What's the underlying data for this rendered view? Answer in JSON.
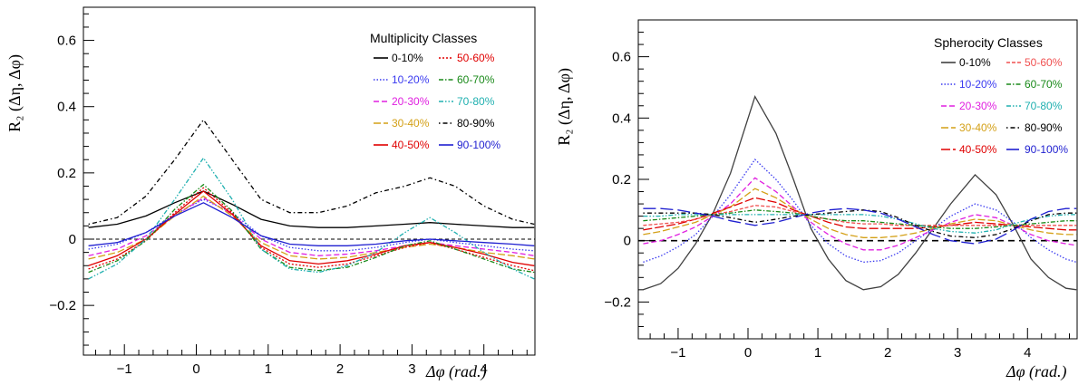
{
  "chart_data": [
    {
      "type": "line",
      "title": "",
      "xlabel": "Δφ (rad.)",
      "ylabel": "R₂ (Δη, Δφ)",
      "xlim": [
        -1.57,
        4.71
      ],
      "ylim": [
        -0.35,
        0.7
      ],
      "xticks": [
        -1,
        0,
        1,
        2,
        3,
        4
      ],
      "yticks": [
        -0.2,
        0,
        0.2,
        0.4,
        0.6
      ],
      "ytick_labels": [
        "−0.2",
        "0",
        "0.2",
        "0.4",
        "0.6"
      ],
      "xtick_labels": [
        "−1",
        "0",
        "1",
        "2",
        "3",
        "4"
      ],
      "grid": false,
      "reference_line": 0,
      "legend": {
        "title": "Multiplicity Classes",
        "placement": "top-right",
        "columns": 2
      },
      "x": [
        -1.5,
        -1.1,
        -0.7,
        -0.3,
        0.1,
        0.5,
        0.9,
        1.3,
        1.7,
        2.1,
        2.5,
        2.9,
        3.25,
        3.6,
        4.0,
        4.4,
        4.7
      ],
      "series": [
        {
          "name": "0-10%",
          "color": "#000000",
          "dash": "",
          "values": [
            0.035,
            0.045,
            0.07,
            0.11,
            0.145,
            0.105,
            0.06,
            0.04,
            0.035,
            0.035,
            0.04,
            0.045,
            0.05,
            0.045,
            0.04,
            0.035,
            0.035
          ]
        },
        {
          "name": "10-20%",
          "color": "#3a3af0",
          "dash": "1.5,2",
          "values": [
            -0.03,
            -0.015,
            0.02,
            0.075,
            0.12,
            0.08,
            0.01,
            -0.025,
            -0.035,
            -0.035,
            -0.025,
            -0.01,
            0.0,
            -0.01,
            -0.02,
            -0.03,
            -0.035
          ]
        },
        {
          "name": "20-30%",
          "color": "#e020e0",
          "dash": "6,3",
          "values": [
            -0.05,
            -0.03,
            0.01,
            0.07,
            0.125,
            0.075,
            0.0,
            -0.04,
            -0.05,
            -0.045,
            -0.035,
            -0.02,
            -0.01,
            -0.02,
            -0.03,
            -0.04,
            -0.05
          ]
        },
        {
          "name": "30-40%",
          "color": "#d4a017",
          "dash": "8,3",
          "values": [
            -0.06,
            -0.04,
            0.0,
            0.07,
            0.13,
            0.07,
            -0.01,
            -0.05,
            -0.06,
            -0.055,
            -0.04,
            -0.025,
            -0.015,
            -0.025,
            -0.04,
            -0.05,
            -0.06
          ]
        },
        {
          "name": "40-50%",
          "color": "#e00000",
          "dash": "",
          "values": [
            -0.08,
            -0.05,
            0.0,
            0.075,
            0.145,
            0.075,
            -0.02,
            -0.065,
            -0.075,
            -0.065,
            -0.045,
            -0.02,
            -0.01,
            -0.025,
            -0.045,
            -0.07,
            -0.08
          ]
        },
        {
          "name": "50-60%",
          "color": "#e00000",
          "dash": "2,2",
          "values": [
            -0.09,
            -0.06,
            -0.005,
            0.08,
            0.155,
            0.08,
            -0.025,
            -0.075,
            -0.085,
            -0.075,
            -0.05,
            -0.025,
            -0.01,
            -0.03,
            -0.055,
            -0.08,
            -0.095
          ]
        },
        {
          "name": "60-70%",
          "color": "#1a8a1a",
          "dash": "5,2,1.5,2",
          "values": [
            -0.1,
            -0.065,
            -0.005,
            0.09,
            0.165,
            0.085,
            -0.03,
            -0.085,
            -0.095,
            -0.085,
            -0.055,
            -0.02,
            -0.005,
            -0.03,
            -0.06,
            -0.09,
            -0.1
          ]
        },
        {
          "name": "70-80%",
          "color": "#20b0b0",
          "dash": "5,2,1.5,2,1.5,2",
          "values": [
            -0.12,
            -0.075,
            0.0,
            0.12,
            0.245,
            0.12,
            -0.03,
            -0.09,
            -0.1,
            -0.08,
            -0.04,
            0.02,
            0.065,
            0.02,
            -0.04,
            -0.09,
            -0.12
          ]
        },
        {
          "name": "80-90%",
          "color": "#000000",
          "dash": "1.5,3,5,3",
          "values": [
            0.045,
            0.065,
            0.13,
            0.24,
            0.36,
            0.24,
            0.12,
            0.08,
            0.08,
            0.1,
            0.14,
            0.16,
            0.185,
            0.16,
            0.1,
            0.06,
            0.045
          ]
        },
        {
          "name": "90-100%",
          "color": "#1f1fd0",
          "dash": "",
          "values": [
            -0.02,
            -0.01,
            0.02,
            0.07,
            0.11,
            0.065,
            0.01,
            -0.015,
            -0.02,
            -0.02,
            -0.015,
            -0.005,
            0.0,
            -0.005,
            -0.01,
            -0.015,
            -0.02
          ]
        }
      ]
    },
    {
      "type": "line",
      "title": "",
      "xlabel": "Δφ (rad.)",
      "ylabel": "R₂ (Δη, Δφ)",
      "xlim": [
        -1.57,
        4.71
      ],
      "ylim": [
        -0.32,
        0.72
      ],
      "xticks": [
        -1,
        0,
        1,
        2,
        3,
        4
      ],
      "yticks": [
        -0.2,
        0,
        0.2,
        0.4,
        0.6
      ],
      "ytick_labels": [
        "−0.2",
        "0",
        "0.2",
        "0.4",
        "0.6"
      ],
      "xtick_labels": [
        "−1",
        "0",
        "1",
        "2",
        "3",
        "4"
      ],
      "grid": false,
      "reference_line": 0,
      "legend": {
        "title": "Spherocity Classes",
        "placement": "top-right",
        "columns": 2
      },
      "x": [
        -1.5,
        -1.25,
        -1.0,
        -0.75,
        -0.5,
        -0.25,
        0.1,
        0.4,
        0.65,
        0.9,
        1.15,
        1.4,
        1.65,
        1.9,
        2.15,
        2.4,
        2.65,
        2.9,
        3.25,
        3.55,
        3.8,
        4.05,
        4.3,
        4.55,
        4.7
      ],
      "series": [
        {
          "name": "0-10%",
          "color": "#404040",
          "dash": "",
          "values": [
            -0.16,
            -0.14,
            -0.09,
            -0.01,
            0.09,
            0.22,
            0.47,
            0.35,
            0.2,
            0.04,
            -0.06,
            -0.13,
            -0.16,
            -0.15,
            -0.11,
            -0.04,
            0.04,
            0.12,
            0.215,
            0.15,
            0.05,
            -0.06,
            -0.12,
            -0.155,
            -0.16
          ]
        },
        {
          "name": "10-20%",
          "color": "#3a3af0",
          "dash": "1.5,2",
          "values": [
            -0.07,
            -0.05,
            -0.02,
            0.02,
            0.08,
            0.15,
            0.265,
            0.2,
            0.13,
            0.05,
            -0.01,
            -0.05,
            -0.07,
            -0.065,
            -0.04,
            0.0,
            0.04,
            0.08,
            0.12,
            0.1,
            0.06,
            0.01,
            -0.03,
            -0.06,
            -0.07
          ]
        },
        {
          "name": "20-30%",
          "color": "#e020e0",
          "dash": "6,3",
          "values": [
            -0.01,
            0.0,
            0.02,
            0.045,
            0.08,
            0.12,
            0.205,
            0.16,
            0.11,
            0.06,
            0.02,
            -0.01,
            -0.03,
            -0.03,
            -0.015,
            0.01,
            0.035,
            0.06,
            0.085,
            0.075,
            0.05,
            0.02,
            0.0,
            -0.01,
            -0.015
          ]
        },
        {
          "name": "30-40%",
          "color": "#d4a017",
          "dash": "8,3",
          "values": [
            0.02,
            0.03,
            0.045,
            0.06,
            0.085,
            0.11,
            0.17,
            0.14,
            0.105,
            0.07,
            0.04,
            0.02,
            0.01,
            0.01,
            0.015,
            0.025,
            0.04,
            0.055,
            0.07,
            0.065,
            0.05,
            0.035,
            0.025,
            0.02,
            0.02
          ]
        },
        {
          "name": "40-50%",
          "color": "#e00000",
          "dash": "10,3",
          "values": [
            0.035,
            0.045,
            0.055,
            0.07,
            0.09,
            0.11,
            0.14,
            0.125,
            0.1,
            0.08,
            0.06,
            0.045,
            0.04,
            0.04,
            0.04,
            0.04,
            0.045,
            0.05,
            0.06,
            0.055,
            0.05,
            0.045,
            0.04,
            0.035,
            0.035
          ]
        },
        {
          "name": "50-60%",
          "color": "#f05050",
          "dash": "4,2",
          "values": [
            0.05,
            0.055,
            0.06,
            0.07,
            0.085,
            0.095,
            0.115,
            0.11,
            0.095,
            0.08,
            0.07,
            0.06,
            0.055,
            0.055,
            0.05,
            0.05,
            0.05,
            0.05,
            0.05,
            0.05,
            0.05,
            0.05,
            0.05,
            0.05,
            0.05
          ]
        },
        {
          "name": "60-70%",
          "color": "#1a8a1a",
          "dash": "5,2,1.5,2",
          "values": [
            0.065,
            0.07,
            0.075,
            0.08,
            0.085,
            0.09,
            0.1,
            0.095,
            0.09,
            0.08,
            0.07,
            0.065,
            0.065,
            0.06,
            0.055,
            0.05,
            0.045,
            0.04,
            0.04,
            0.045,
            0.05,
            0.055,
            0.06,
            0.065,
            0.065
          ]
        },
        {
          "name": "70-80%",
          "color": "#20b0b0",
          "dash": "5,2,1.5,2,1.5,2",
          "values": [
            0.08,
            0.08,
            0.085,
            0.085,
            0.085,
            0.085,
            0.085,
            0.085,
            0.085,
            0.085,
            0.085,
            0.085,
            0.085,
            0.08,
            0.07,
            0.055,
            0.04,
            0.03,
            0.025,
            0.035,
            0.055,
            0.07,
            0.08,
            0.085,
            0.085
          ]
        },
        {
          "name": "80-90%",
          "color": "#000000",
          "dash": "1.5,3,5,3",
          "values": [
            0.09,
            0.09,
            0.09,
            0.09,
            0.085,
            0.075,
            0.06,
            0.07,
            0.08,
            0.085,
            0.09,
            0.095,
            0.1,
            0.095,
            0.075,
            0.05,
            0.03,
            0.015,
            0.01,
            0.02,
            0.04,
            0.065,
            0.085,
            0.09,
            0.09
          ]
        },
        {
          "name": "90-100%",
          "color": "#1f1fd0",
          "dash": "14,5",
          "values": [
            0.105,
            0.105,
            0.1,
            0.09,
            0.08,
            0.065,
            0.05,
            0.06,
            0.075,
            0.09,
            0.1,
            0.105,
            0.1,
            0.09,
            0.07,
            0.045,
            0.02,
            0.0,
            -0.01,
            0.005,
            0.035,
            0.07,
            0.095,
            0.105,
            0.105
          ]
        }
      ]
    }
  ]
}
